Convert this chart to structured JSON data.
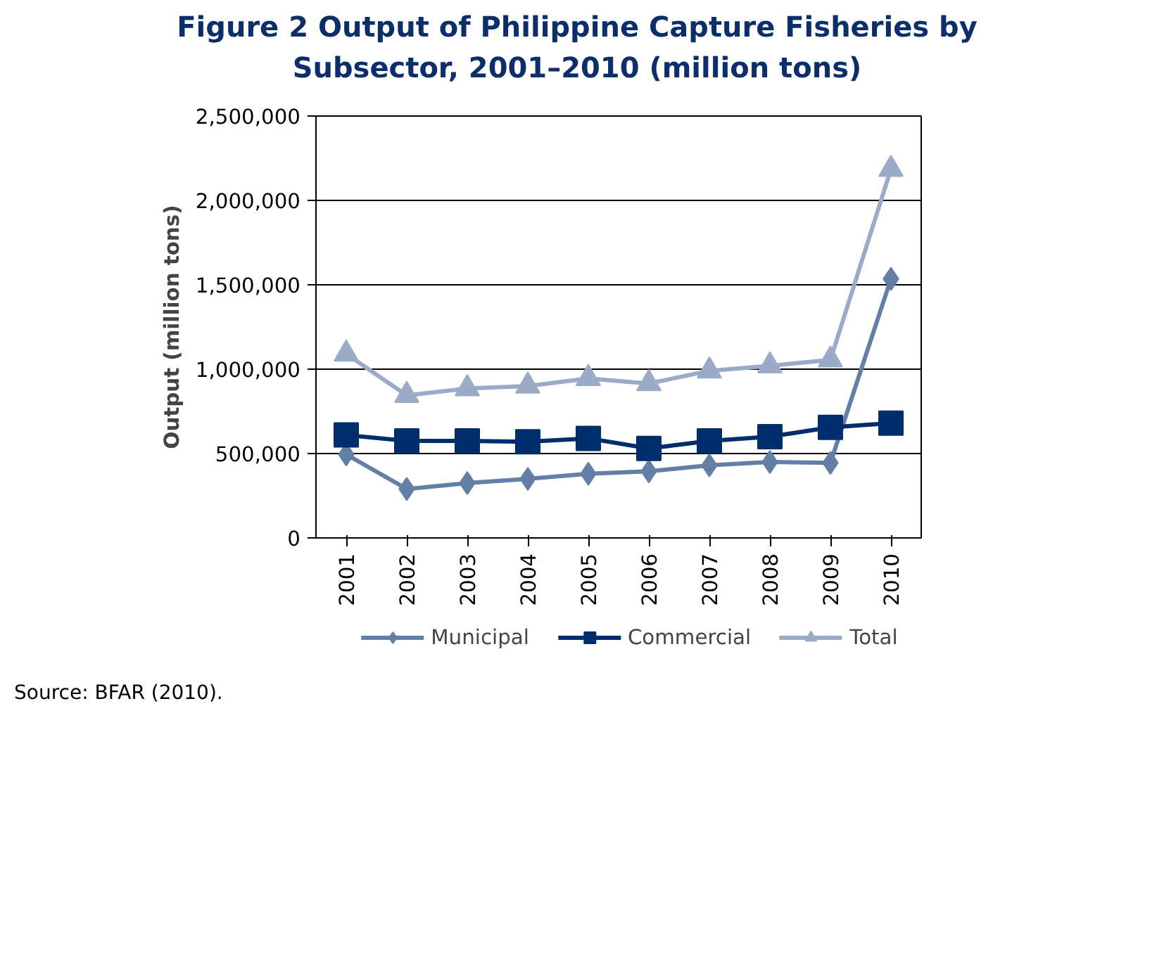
{
  "chart_data": {
    "type": "line",
    "title": "Figure 2    Output of Philippine Capture Fisheries by Subsector, 2001–2010 (million tons)",
    "ylabel": "Output (million tons)",
    "categories": [
      "2001",
      "2002",
      "2003",
      "2004",
      "2005",
      "2006",
      "2007",
      "2008",
      "2009",
      "2010"
    ],
    "series": [
      {
        "name": "Municipal",
        "color": "#647fa6",
        "marker": "diamond",
        "values": [
          495000,
          290000,
          325000,
          350000,
          380000,
          395000,
          430000,
          450000,
          445000,
          1535000
        ]
      },
      {
        "name": "Commercial",
        "color": "#002d6b",
        "marker": "square",
        "values": [
          610000,
          575000,
          575000,
          570000,
          590000,
          530000,
          575000,
          600000,
          655000,
          680000
        ]
      },
      {
        "name": "Total",
        "color": "#9aabc7",
        "marker": "triangle",
        "values": [
          1090000,
          845000,
          885000,
          900000,
          945000,
          915000,
          990000,
          1020000,
          1055000,
          2185000
        ]
      }
    ],
    "ylim": [
      0,
      2500000
    ],
    "yticks": [
      0,
      {
        "value": 500000,
        "label": "500,000"
      },
      {
        "value": 1000000,
        "label": "1,000,000"
      },
      {
        "value": 1500000,
        "label": "1,500,000"
      },
      {
        "value": 2000000,
        "label": "2,000,000"
      },
      {
        "value": 2500000,
        "label": "2,500,000"
      }
    ],
    "grid": "y",
    "legend": "bottom",
    "line_style": "solid",
    "annotations": [
      "Source: BFAR (2010)."
    ]
  }
}
